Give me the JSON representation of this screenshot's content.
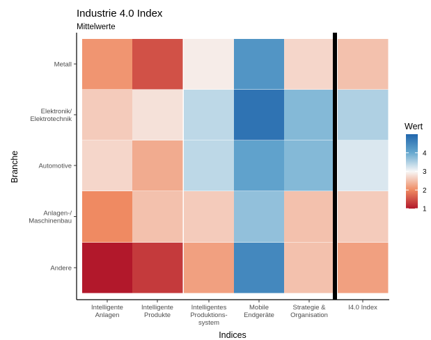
{
  "chart_data": {
    "type": "heatmap",
    "title": "Industrie 4.0 Index",
    "subtitle": "Mittelwerte",
    "xlabel": "Indices",
    "ylabel": "Branche",
    "x_categories": [
      [
        "Intelligente",
        "Anlagen"
      ],
      [
        "Intelligente",
        "Produkte"
      ],
      [
        "Intelligentes",
        "Produktions-",
        "system"
      ],
      [
        "Mobile",
        "Endgeräte"
      ],
      [
        "Strategie &",
        "Organisation"
      ],
      [
        "I4.0 Index"
      ]
    ],
    "y_categories": [
      [
        "Metall"
      ],
      [
        "Elektronik/",
        "Elektrotechnik"
      ],
      [
        "Automotive"
      ],
      [
        "Anlagen-/",
        "Maschinenbau"
      ],
      [
        "Andere"
      ]
    ],
    "values": [
      [
        2.1,
        1.5,
        2.9,
        4.3,
        2.7,
        2.5
      ],
      [
        2.6,
        2.8,
        3.4,
        4.8,
        3.8,
        3.5
      ],
      [
        2.7,
        2.3,
        3.4,
        4.1,
        3.8,
        3.2
      ],
      [
        2.0,
        2.5,
        2.6,
        3.7,
        2.5,
        2.6
      ],
      [
        1.0,
        1.3,
        2.2,
        4.5,
        2.5,
        2.2
      ]
    ],
    "legend": {
      "title": "Wert",
      "ticks": [
        1,
        2,
        3,
        4
      ],
      "range": [
        1,
        5
      ],
      "position": "right"
    },
    "colors": {
      "low": "#b2182b",
      "mid_low": "#ef8a62",
      "neutral": "#f7f7f7",
      "mid_high": "#67a9cf",
      "high": "#2166ac",
      "separator": "#000000"
    }
  }
}
